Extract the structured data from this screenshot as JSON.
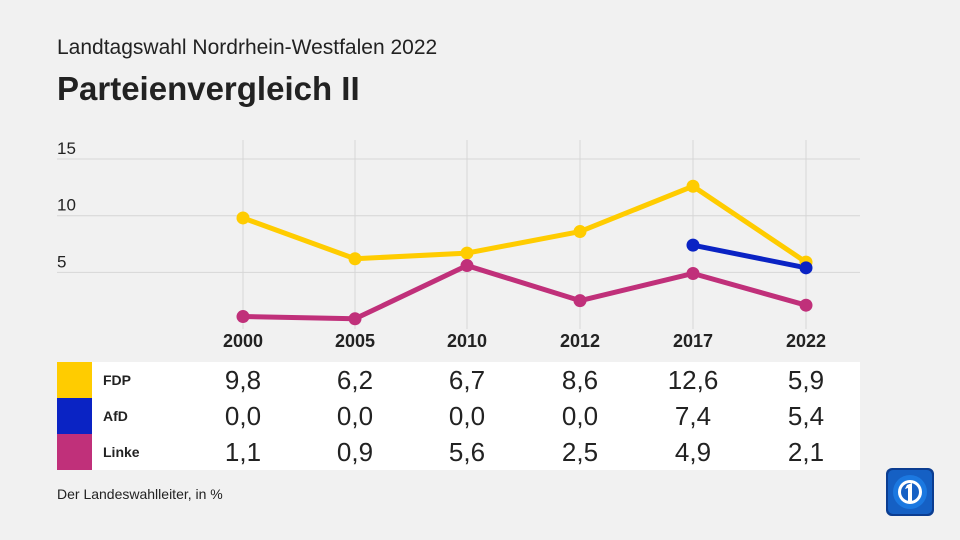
{
  "header": {
    "subtitle": "Landtagswahl Nordrhein-Westfalen 2022",
    "title": "Parteienvergleich II"
  },
  "chart_data": {
    "type": "line",
    "x": [
      "2000",
      "2005",
      "2010",
      "2012",
      "2017",
      "2022"
    ],
    "yticks": [
      5,
      10,
      15
    ],
    "ylim": [
      0,
      16
    ],
    "grid": true,
    "series": [
      {
        "name": "FDP",
        "color": "#ffcc00",
        "values": [
          9.8,
          6.2,
          6.7,
          8.6,
          12.6,
          5.9
        ],
        "labels": [
          "9,8",
          "6,2",
          "6,7",
          "8,6",
          "12,6",
          "5,9"
        ]
      },
      {
        "name": "AfD",
        "color": "#0a23c4",
        "values": [
          null,
          null,
          null,
          null,
          7.4,
          5.4
        ],
        "labels": [
          "0,0",
          "0,0",
          "0,0",
          "0,0",
          "7,4",
          "5,4"
        ]
      },
      {
        "name": "Linke",
        "color": "#c0307a",
        "values": [
          1.1,
          0.9,
          5.6,
          2.5,
          4.9,
          2.1
        ],
        "labels": [
          "1,1",
          "0,9",
          "5,6",
          "2,5",
          "4,9",
          "2,1"
        ]
      }
    ]
  },
  "footer": {
    "source": "Der Landeswahlleiter, in %",
    "logo_icon": "tagesschau-logo-icon"
  }
}
